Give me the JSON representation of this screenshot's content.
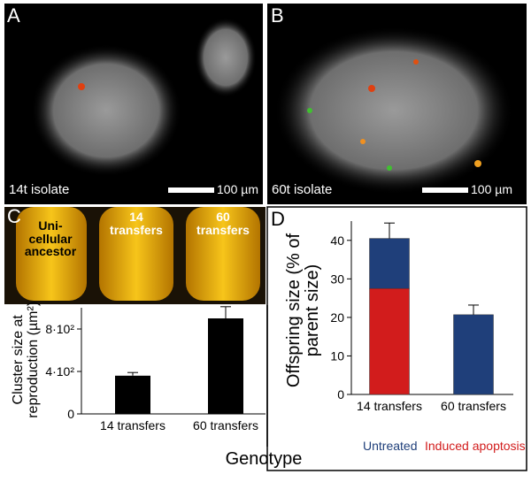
{
  "panels": {
    "a": {
      "letter": "A",
      "caption": "14t isolate",
      "scale": "100 µm"
    },
    "b": {
      "letter": "B",
      "caption": "60t isolate",
      "scale": "100 µm"
    },
    "c": {
      "letter": "C",
      "tubes": [
        "Uni-cellular ancestor",
        "14 transfers",
        "60 transfers"
      ]
    },
    "d": {
      "letter": "D"
    }
  },
  "chart_data": [
    {
      "type": "bar",
      "y_label": "Cluster size at reproduction (µm²)",
      "x_label": "Genotype",
      "categories": [
        "14 transfers",
        "60 transfers"
      ],
      "values": [
        360,
        900
      ],
      "errors": [
        30,
        110
      ],
      "color": "#000000",
      "ylim": [
        0,
        1000
      ],
      "yticks": [
        0,
        {
          "value": 400,
          "label": "4·10²"
        },
        {
          "value": 800,
          "label": "8·10²"
        }
      ]
    },
    {
      "type": "stacked_bar",
      "y_label": "Offspring size (% of parent size)",
      "categories": [
        "14 transfers",
        "60 transfers"
      ],
      "series": [
        {
          "name": "Induced apoptosis",
          "color": "#d21c1c",
          "values": [
            27.5,
            null
          ],
          "errors": [
            3.5,
            null
          ]
        },
        {
          "name": "Untreated",
          "color": "#1f3f7a",
          "values": [
            13,
            20.7
          ],
          "errors": [
            4,
            2.5
          ]
        }
      ],
      "ylim": [
        0,
        45
      ],
      "yticks": [
        0,
        10,
        20,
        30,
        40
      ]
    }
  ]
}
